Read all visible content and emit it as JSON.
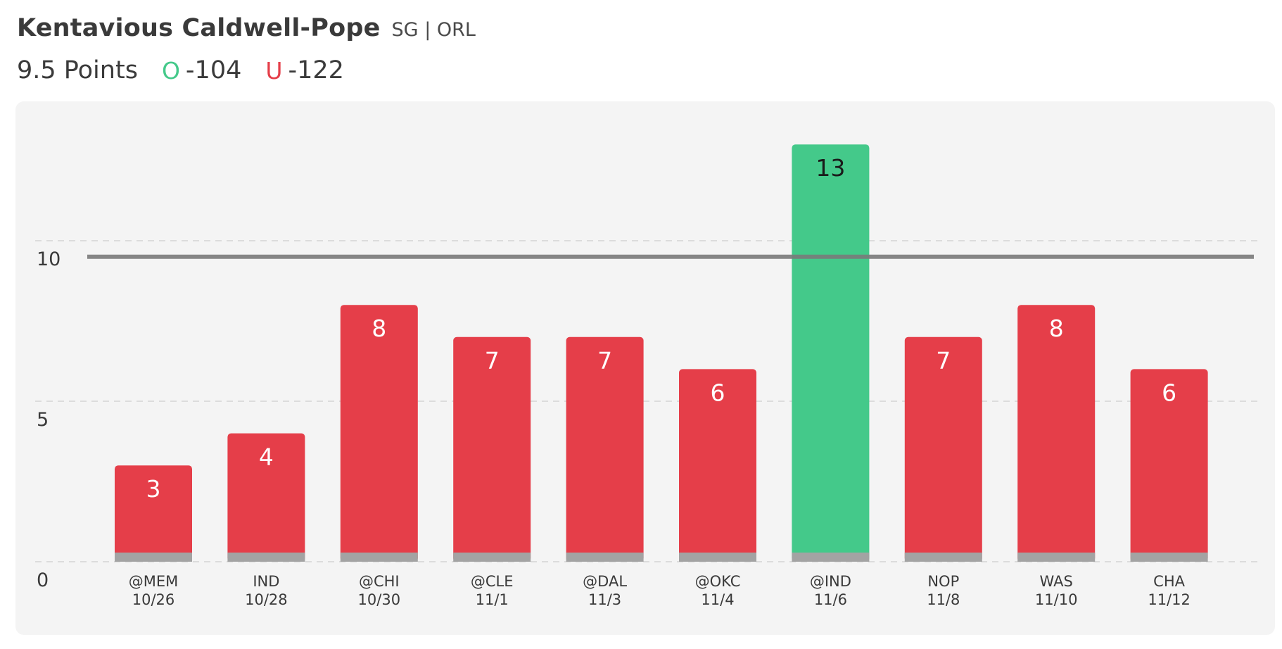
{
  "header": {
    "player_name": "Kentavious Caldwell-Pope",
    "player_meta": "SG | ORL",
    "prop_line": "9.5 Points",
    "over_icon": "O",
    "over_odds": "-104",
    "under_icon": "U",
    "under_odds": "-122"
  },
  "colors": {
    "over": "#44c98a",
    "under": "#e53e49",
    "line": "#7a7a7a",
    "base": "#a3a3a3",
    "grid": "#dcdcdc"
  },
  "chart_data": {
    "type": "bar",
    "title": "",
    "xlabel": "",
    "ylabel": "",
    "ylim": [
      0,
      14
    ],
    "yticks": [
      0,
      5,
      10
    ],
    "grid": true,
    "threshold": 9.5,
    "categories": [
      {
        "opponent": "@MEM",
        "date": "10/26"
      },
      {
        "opponent": "IND",
        "date": "10/28"
      },
      {
        "opponent": "@CHI",
        "date": "10/30"
      },
      {
        "opponent": "@CLE",
        "date": "11/1"
      },
      {
        "opponent": "@DAL",
        "date": "11/3"
      },
      {
        "opponent": "@OKC",
        "date": "11/4"
      },
      {
        "opponent": "@IND",
        "date": "11/6"
      },
      {
        "opponent": "NOP",
        "date": "11/8"
      },
      {
        "opponent": "WAS",
        "date": "11/10"
      },
      {
        "opponent": "CHA",
        "date": "11/12"
      }
    ],
    "values": [
      3,
      4,
      8,
      7,
      7,
      6,
      13,
      7,
      8,
      6
    ]
  }
}
